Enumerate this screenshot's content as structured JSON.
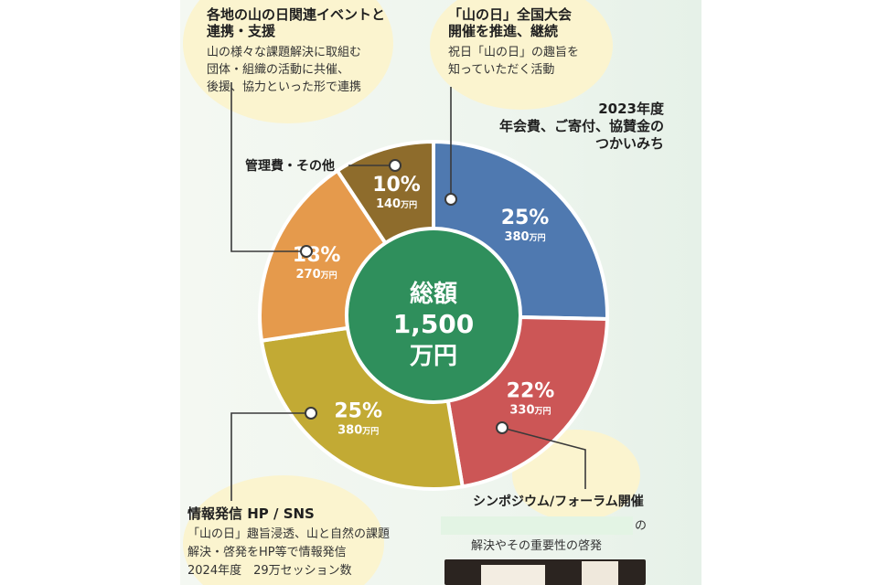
{
  "colors": {
    "blue": "#4f79b0",
    "red": "#cc5656",
    "mustard": "#c2aa34",
    "orange": "#e59a4c",
    "brown": "#8e6c2c",
    "center": "#2f8f5c",
    "leader": "#3a3a3a",
    "blob": "#fbf4cf"
  },
  "headline": {
    "year": "2023年度",
    "line2": "年会費、ご寄付、協賛金の",
    "line3": "つかいみち"
  },
  "center_label": {
    "line1": "総額",
    "line2": "1,500",
    "line3": "万円"
  },
  "sections": {
    "local_events": {
      "title1": "各地の山の日関連イベントと",
      "title2": "連携・支援",
      "body": [
        "山の様々な課題解決に取組む",
        "団体・組織の活動に共催、",
        "後援、協力といった形で連携"
      ]
    },
    "national_convention": {
      "title1": "「山の日」全国大会",
      "title2": "開催を推進、継続",
      "body": [
        "祝日「山の日」の趣旨を",
        "知っていただく活動"
      ]
    },
    "admin": {
      "title": "管理費・その他"
    },
    "info": {
      "title": "情報発信 HP / SNS",
      "body": [
        "「山の日」趣旨浸透、山と自然の課題",
        "解決・啓発をHP等で情報発信",
        "2024年度　29万セッション数"
      ]
    },
    "symposium": {
      "title": "シンポジウム/フォーラム開催",
      "body1": "の",
      "body2": "解決やその重要性の啓発"
    }
  },
  "chart_data": {
    "type": "pie",
    "donut": true,
    "total_label": "総額 1,500 万円",
    "unit": "万円",
    "start": "top, clockwise",
    "slices": [
      {
        "percent_label": "25%",
        "amount_label": "380",
        "amount": 380,
        "percent": 25,
        "color": "#4f79b0"
      },
      {
        "percent_label": "22%",
        "amount_label": "330",
        "amount": 330,
        "percent": 22,
        "color": "#cc5656"
      },
      {
        "percent_label": "25%",
        "amount_label": "380",
        "amount": 380,
        "percent": 25,
        "color": "#c2aa34"
      },
      {
        "percent_label": "18%",
        "amount_label": "270",
        "amount": 270,
        "percent": 18,
        "color": "#e59a4c"
      },
      {
        "percent_label": "10%",
        "amount_label": "140",
        "amount": 140,
        "percent": 10,
        "color": "#8e6c2c"
      }
    ]
  }
}
